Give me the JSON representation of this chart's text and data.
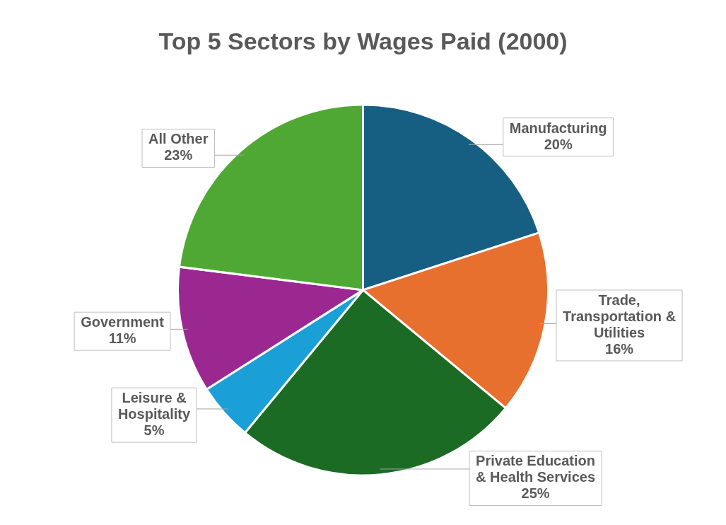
{
  "chart_data": {
    "type": "pie",
    "title": "Top 5 Sectors by Wages Paid (2000)",
    "categories": [
      "Manufacturing",
      "Trade, Transportation & Utilities",
      "Private Education & Health Services",
      "Leisure & Hospitality",
      "Government",
      "All Other"
    ],
    "values": [
      20,
      16,
      25,
      5,
      11,
      23
    ],
    "value_labels": [
      "20%",
      "16%",
      "25%",
      "5%",
      "11%",
      "23%"
    ],
    "colors": [
      "#175f82",
      "#e8702f",
      "#1b6b25",
      "#1a9fd6",
      "#9b2890",
      "#4fa833"
    ],
    "legend": false
  }
}
